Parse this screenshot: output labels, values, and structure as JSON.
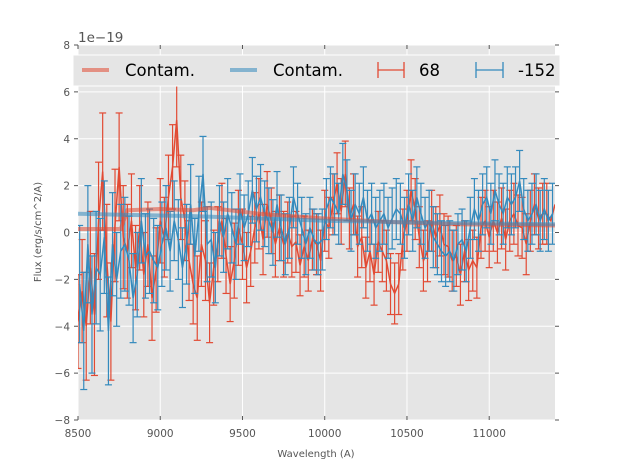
{
  "chart_data": {
    "type": "line",
    "title": "",
    "xlabel": "Wavelength (A)",
    "ylabel": "Flux (erg/s/cm^2/A)",
    "y_offset_label": "1e−19",
    "xlim": [
      8500,
      11400
    ],
    "ylim": [
      -8,
      8
    ],
    "xticks": [
      8500,
      9000,
      9500,
      10000,
      10500,
      11000
    ],
    "yticks": [
      -8,
      -6,
      -4,
      -2,
      0,
      2,
      4,
      6,
      8
    ],
    "ytick_labels": [
      "−8",
      "−6",
      "−4",
      "−2",
      "0",
      "2",
      "4",
      "6",
      "8"
    ],
    "grid": true,
    "legend": {
      "placement": "top",
      "ncol": 4
    },
    "colors": {
      "red": "#E24A33",
      "blue": "#348ABD",
      "background": "#E5E5E5",
      "grid": "#FFFFFF"
    },
    "series": [
      {
        "name": "Contam.",
        "kind": "contam",
        "color": "#E24A33",
        "x": [
          8500,
          8700,
          8760,
          8800,
          9000,
          9200,
          9300,
          9600,
          10000,
          10400,
          10800,
          11400
        ],
        "y": [
          0.15,
          0.15,
          0.15,
          0.95,
          1.0,
          0.95,
          1.05,
          0.8,
          0.6,
          0.45,
          0.35,
          0.3
        ]
      },
      {
        "name": "Contam.",
        "kind": "contam",
        "color": "#348ABD",
        "x": [
          8500,
          8800,
          9200,
          9600,
          10000,
          10400,
          10800,
          11400
        ],
        "y": [
          0.8,
          0.75,
          0.7,
          0.6,
          0.5,
          0.45,
          0.4,
          0.35
        ]
      },
      {
        "name": "68",
        "kind": "errorbar",
        "color": "#E24A33",
        "x": [
          8500,
          8525,
          8550,
          8575,
          8600,
          8625,
          8650,
          8675,
          8700,
          8725,
          8750,
          8775,
          8800,
          8825,
          8850,
          8875,
          8900,
          8925,
          8950,
          8975,
          9000,
          9025,
          9050,
          9075,
          9100,
          9125,
          9150,
          9175,
          9200,
          9225,
          9250,
          9275,
          9300,
          9325,
          9350,
          9375,
          9400,
          9425,
          9450,
          9475,
          9500,
          9525,
          9550,
          9575,
          9600,
          9625,
          9650,
          9675,
          9700,
          9725,
          9750,
          9775,
          9800,
          9825,
          9850,
          9875,
          9900,
          9925,
          9950,
          9975,
          10000,
          10025,
          10050,
          10075,
          10100,
          10125,
          10150,
          10175,
          10200,
          10225,
          10250,
          10275,
          10300,
          10325,
          10350,
          10375,
          10400,
          10425,
          10450,
          10475,
          10500,
          10525,
          10550,
          10575,
          10600,
          10625,
          10650,
          10675,
          10700,
          10725,
          10750,
          10775,
          10800,
          10825,
          10850,
          10875,
          10900,
          10925,
          10950,
          10975,
          11000,
          11025,
          11050,
          11075,
          11100,
          11125,
          11150,
          11175,
          11200,
          11225,
          11250,
          11275,
          11300,
          11325,
          11350,
          11375,
          11400
        ],
        "y": [
          -3.8,
          -2.5,
          -4.0,
          -1.5,
          -3.5,
          0.5,
          2.6,
          -1.2,
          -3.8,
          0.3,
          2.8,
          -0.2,
          -0.8,
          0.5,
          -1.5,
          0.2,
          -1.8,
          -0.5,
          -2.8,
          -1.6,
          0.5,
          -0.2,
          1.5,
          2.8,
          4.8,
          1.5,
          0.5,
          -1.2,
          -2.2,
          -2.8,
          -0.5,
          -1.2,
          -3.0,
          -1.5,
          -0.5,
          0.5,
          -1.0,
          -2.2,
          -1.2,
          0.2,
          -0.5,
          -1.5,
          -0.8,
          0.2,
          0.8,
          -0.3,
          1.2,
          0.5,
          -0.5,
          0.2,
          -0.5,
          0.0,
          -0.6,
          -0.4,
          -1.4,
          -0.6,
          -1.2,
          -0.3,
          -0.5,
          -1.2,
          0.5,
          0.2,
          1.2,
          2.1,
          0.9,
          2.5,
          0.6,
          1.2,
          -0.6,
          -0.2,
          -1.5,
          -0.8,
          -1.8,
          -0.4,
          -0.8,
          -1.2,
          -2.2,
          -2.6,
          -2.2,
          -0.3,
          0.5,
          1.8,
          1.0,
          -0.2,
          -1.2,
          -0.8,
          0.5,
          -0.2,
          0.3,
          -0.5,
          -0.6,
          -1.2,
          -1.0,
          -1.8,
          -0.8,
          -1.6,
          -1.2,
          -1.5,
          0.2,
          0.5,
          -0.2,
          0.5,
          0.0,
          0.6,
          -0.3,
          0.5,
          0.8,
          0.3,
          0.2,
          -0.5,
          0.5,
          1.2,
          0.6,
          0.8,
          0.8,
          0.5,
          1.2
        ],
        "err": [
          2.0,
          2.2,
          2.3,
          2.4,
          2.6,
          2.5,
          2.5,
          2.4,
          2.5,
          2.4,
          2.3,
          2.2,
          2.0,
          2.0,
          1.8,
          1.8,
          1.8,
          1.8,
          1.8,
          1.8,
          1.8,
          1.7,
          1.8,
          1.8,
          2.0,
          1.8,
          1.7,
          1.7,
          1.7,
          1.8,
          1.8,
          1.7,
          1.7,
          1.6,
          1.6,
          1.6,
          1.6,
          1.6,
          1.6,
          1.6,
          1.5,
          1.5,
          1.5,
          1.5,
          1.5,
          1.5,
          1.4,
          1.4,
          1.4,
          1.4,
          1.4,
          1.3,
          1.3,
          1.3,
          1.3,
          1.3,
          1.3,
          1.3,
          1.3,
          1.3,
          1.3,
          1.3,
          1.3,
          1.3,
          1.4,
          1.4,
          1.3,
          1.3,
          1.3,
          1.3,
          1.3,
          1.3,
          1.3,
          1.3,
          1.3,
          1.3,
          1.3,
          1.3,
          1.3,
          1.3,
          1.3,
          1.3,
          1.3,
          1.3,
          1.3,
          1.3,
          1.3,
          1.3,
          1.3,
          1.3,
          1.3,
          1.3,
          1.3,
          1.3,
          1.3,
          1.3,
          1.3,
          1.3,
          1.3,
          1.3,
          1.3,
          1.3,
          1.3,
          1.3,
          1.3,
          1.3,
          1.3,
          1.3,
          1.3,
          1.3,
          1.3,
          1.3,
          1.3,
          1.3,
          1.3
        ]
      },
      {
        "name": "-152",
        "kind": "errorbar",
        "color": "#348ABD",
        "x": [
          8510,
          8535,
          8560,
          8585,
          8610,
          8635,
          8660,
          8685,
          8710,
          8735,
          8760,
          8785,
          8810,
          8835,
          8860,
          8885,
          8910,
          8935,
          8960,
          8985,
          9010,
          9035,
          9060,
          9085,
          9110,
          9135,
          9160,
          9185,
          9210,
          9235,
          9260,
          9285,
          9310,
          9335,
          9360,
          9385,
          9410,
          9435,
          9460,
          9485,
          9510,
          9535,
          9560,
          9585,
          9610,
          9635,
          9660,
          9685,
          9710,
          9735,
          9760,
          9785,
          9810,
          9835,
          9860,
          9885,
          9910,
          9935,
          9960,
          9985,
          10010,
          10035,
          10060,
          10085,
          10110,
          10135,
          10160,
          10185,
          10210,
          10235,
          10260,
          10285,
          10310,
          10335,
          10360,
          10385,
          10410,
          10435,
          10460,
          10485,
          10510,
          10535,
          10560,
          10585,
          10610,
          10635,
          10660,
          10685,
          10710,
          10735,
          10760,
          10785,
          10810,
          10835,
          10860,
          10885,
          10910,
          10935,
          10960,
          10985,
          11010,
          11035,
          11060,
          11085,
          11110,
          11135,
          11160,
          11185,
          11210,
          11235,
          11260,
          11285,
          11310,
          11335,
          11360,
          11385
        ],
        "y": [
          -2.2,
          -4.2,
          -0.5,
          -3.5,
          -1.5,
          -1.8,
          -0.2,
          -4.2,
          -0.5,
          -2.0,
          -0.8,
          -0.5,
          -1.2,
          -2.8,
          -1.8,
          0.5,
          -1.0,
          -0.8,
          -1.2,
          -1.5,
          -0.5,
          0.2,
          -0.8,
          0.5,
          -0.3,
          -1.5,
          -0.5,
          1.2,
          -1.0,
          0.8,
          2.5,
          -0.5,
          -0.3,
          -1.5,
          0.5,
          -0.2,
          0.8,
          0.2,
          -0.5,
          1.0,
          0.2,
          0.8,
          1.8,
          1.0,
          1.5,
          0.8,
          0.5,
          0.0,
          1.2,
          0.2,
          -0.5,
          0.2,
          1.5,
          0.8,
          0.2,
          -0.5,
          0.2,
          -0.3,
          -0.5,
          -0.3,
          1.0,
          1.5,
          1.2,
          0.8,
          2.5,
          1.8,
          0.5,
          1.2,
          0.8,
          1.5,
          0.5,
          0.8,
          0.2,
          0.5,
          0.8,
          0.2,
          0.6,
          1.0,
          0.8,
          0.2,
          1.2,
          0.5,
          1.5,
          0.8,
          0.2,
          0.5,
          -0.2,
          -0.5,
          -0.8,
          -1.0,
          -0.8,
          -1.2,
          -0.5,
          -0.3,
          -0.8,
          0.2,
          1.0,
          0.5,
          1.2,
          1.5,
          0.8,
          1.8,
          1.2,
          0.8,
          1.5,
          1.2,
          1.5,
          2.2,
          1.0,
          0.5,
          0.8,
          1.2,
          0.5,
          1.0,
          0.5,
          0.8
        ],
        "err": [
          2.5,
          2.5,
          2.5,
          2.5,
          2.4,
          2.4,
          2.4,
          2.3,
          2.2,
          2.0,
          2.0,
          2.0,
          1.9,
          1.9,
          1.8,
          1.8,
          1.8,
          1.8,
          1.8,
          1.8,
          1.8,
          1.8,
          1.7,
          1.7,
          1.7,
          1.7,
          1.7,
          1.7,
          1.6,
          1.6,
          1.6,
          1.6,
          1.6,
          1.5,
          1.5,
          1.5,
          1.5,
          1.5,
          1.5,
          1.5,
          1.4,
          1.4,
          1.4,
          1.4,
          1.4,
          1.4,
          1.4,
          1.4,
          1.4,
          1.4,
          1.3,
          1.3,
          1.3,
          1.3,
          1.3,
          1.3,
          1.3,
          1.3,
          1.3,
          1.3,
          1.3,
          1.3,
          1.3,
          1.3,
          1.3,
          1.3,
          1.3,
          1.3,
          1.3,
          1.3,
          1.3,
          1.3,
          1.3,
          1.3,
          1.3,
          1.3,
          1.3,
          1.3,
          1.3,
          1.3,
          1.3,
          1.3,
          1.3,
          1.3,
          1.3,
          1.3,
          1.3,
          1.3,
          1.3,
          1.3,
          1.3,
          1.3,
          1.3,
          1.3,
          1.3,
          1.3,
          1.3,
          1.3,
          1.3,
          1.3,
          1.3,
          1.3,
          1.3,
          1.3,
          1.3,
          1.3,
          1.3,
          1.3,
          1.3,
          1.3,
          1.3,
          1.3,
          1.3,
          1.3,
          1.3,
          1.3
        ]
      }
    ]
  }
}
